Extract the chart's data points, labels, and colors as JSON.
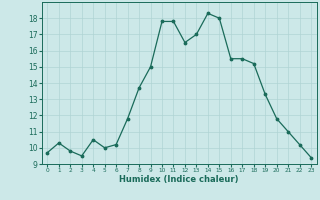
{
  "x": [
    0,
    1,
    2,
    3,
    4,
    5,
    6,
    7,
    8,
    9,
    10,
    11,
    12,
    13,
    14,
    15,
    16,
    17,
    18,
    19,
    20,
    21,
    22,
    23
  ],
  "y": [
    9.7,
    10.3,
    9.8,
    9.5,
    10.5,
    10.0,
    10.2,
    11.8,
    13.7,
    15.0,
    17.8,
    17.8,
    16.5,
    17.0,
    18.3,
    18.0,
    15.5,
    15.5,
    15.2,
    13.3,
    11.8,
    11.0,
    10.2,
    9.4
  ],
  "xlabel": "Humidex (Indice chaleur)",
  "xlim": [
    -0.5,
    23.5
  ],
  "ylim": [
    9,
    19
  ],
  "yticks": [
    9,
    10,
    11,
    12,
    13,
    14,
    15,
    16,
    17,
    18
  ],
  "xticks": [
    0,
    1,
    2,
    3,
    4,
    5,
    6,
    7,
    8,
    9,
    10,
    11,
    12,
    13,
    14,
    15,
    16,
    17,
    18,
    19,
    20,
    21,
    22,
    23
  ],
  "line_color": "#1a6b5a",
  "marker_color": "#1a6b5a",
  "bg_color": "#cce8e8",
  "grid_color": "#b0d4d4",
  "label_color": "#1a6b5a",
  "tick_color": "#1a6b5a"
}
